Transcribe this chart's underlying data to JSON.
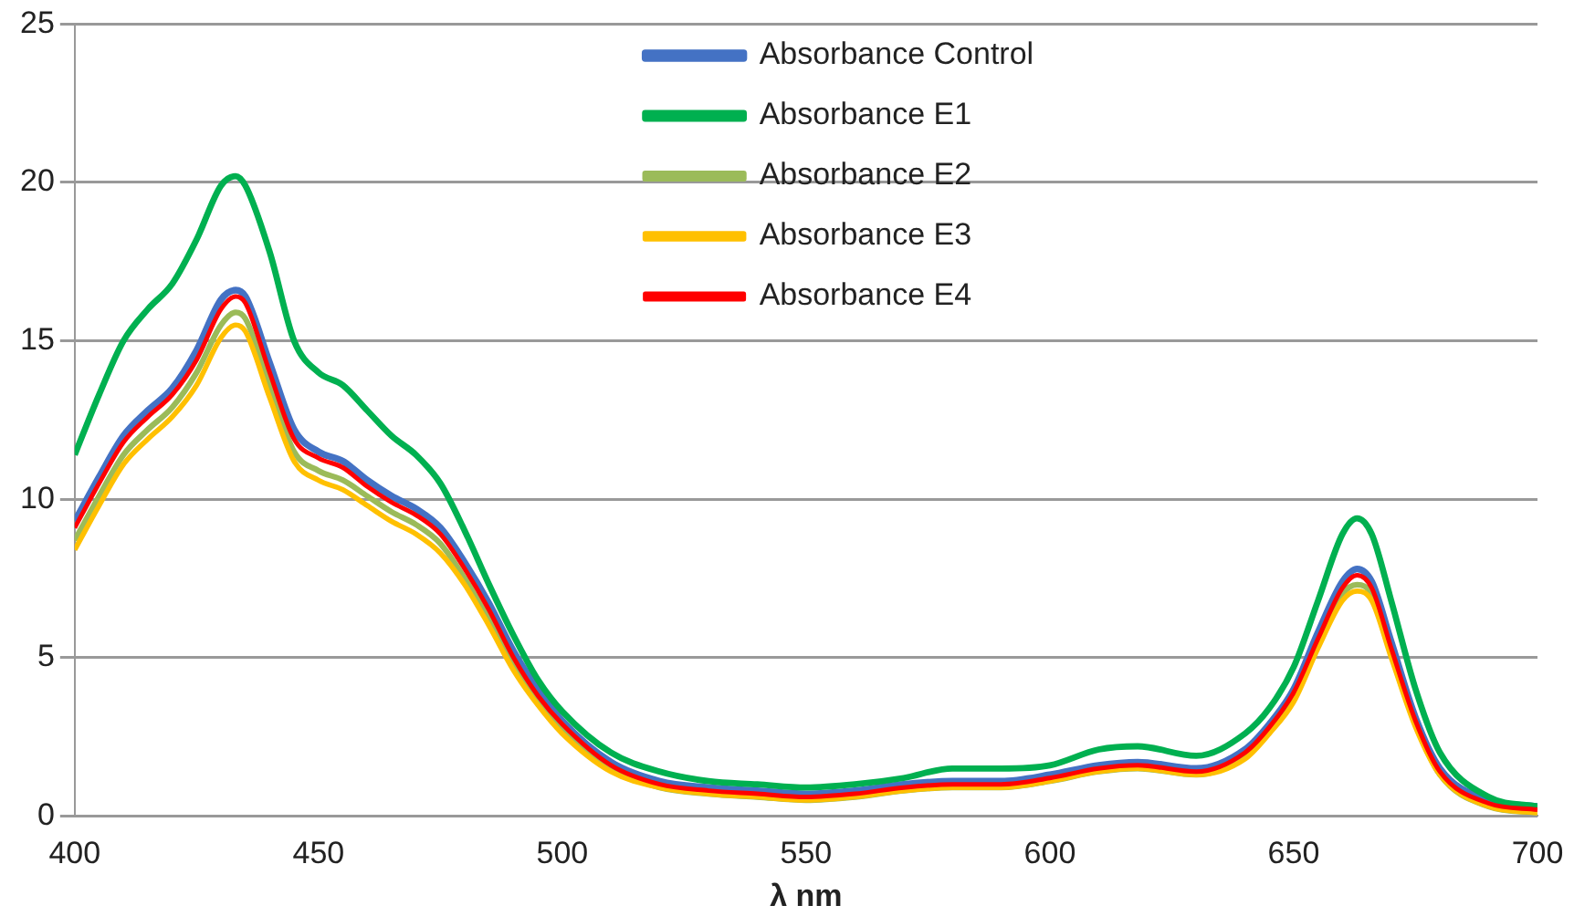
{
  "chart_data": {
    "type": "line",
    "xlabel": "λ nm",
    "xlim": [
      400,
      700
    ],
    "xticks": [
      400,
      450,
      500,
      550,
      600,
      650,
      700
    ],
    "ylim": [
      0,
      25
    ],
    "yticks": [
      0,
      5,
      10,
      15,
      20,
      25
    ],
    "grid": "y",
    "legend": "top",
    "marker": "none",
    "x": [
      400,
      405,
      410,
      415,
      420,
      425,
      430,
      433,
      435,
      440,
      445,
      450,
      455,
      460,
      465,
      470,
      475,
      480,
      485,
      490,
      495,
      500,
      510,
      520,
      530,
      540,
      550,
      560,
      570,
      580,
      590,
      600,
      610,
      618,
      630,
      640,
      645,
      650,
      655,
      660,
      663,
      666,
      670,
      675,
      680,
      690,
      700
    ],
    "series": [
      {
        "name": "Absorbance Control",
        "color": "#4472c4",
        "values": [
          9.3,
          10.7,
          12.0,
          12.8,
          13.5,
          14.7,
          16.3,
          16.6,
          16.4,
          14.3,
          12.2,
          11.5,
          11.2,
          10.6,
          10.1,
          9.7,
          9.1,
          8.0,
          6.7,
          5.2,
          4.0,
          3.0,
          1.7,
          1.1,
          0.9,
          0.8,
          0.7,
          0.8,
          1.0,
          1.1,
          1.1,
          1.3,
          1.6,
          1.7,
          1.5,
          2.1,
          2.9,
          4.0,
          5.8,
          7.4,
          7.8,
          7.4,
          5.5,
          3.1,
          1.5,
          0.5,
          0.3
        ]
      },
      {
        "name": "Absorbance E1",
        "color": "#00b050",
        "values": [
          11.4,
          13.3,
          15.0,
          16.0,
          16.8,
          18.2,
          19.9,
          20.2,
          19.9,
          17.8,
          15.0,
          14.0,
          13.6,
          12.8,
          12.0,
          11.4,
          10.5,
          9.0,
          7.3,
          5.7,
          4.3,
          3.3,
          2.0,
          1.4,
          1.1,
          1.0,
          0.9,
          1.0,
          1.2,
          1.5,
          1.5,
          1.6,
          2.1,
          2.2,
          1.9,
          2.6,
          3.4,
          4.7,
          6.8,
          8.9,
          9.4,
          8.9,
          6.8,
          4.0,
          2.0,
          0.6,
          0.3
        ]
      },
      {
        "name": "Absorbance E2",
        "color": "#9bbb59",
        "values": [
          8.7,
          10.1,
          11.4,
          12.2,
          12.9,
          14.0,
          15.5,
          15.9,
          15.7,
          13.6,
          11.5,
          10.9,
          10.6,
          10.1,
          9.6,
          9.2,
          8.6,
          7.5,
          6.2,
          4.8,
          3.6,
          2.7,
          1.5,
          0.9,
          0.7,
          0.6,
          0.5,
          0.6,
          0.8,
          0.9,
          0.9,
          1.1,
          1.4,
          1.5,
          1.3,
          1.9,
          2.7,
          3.7,
          5.4,
          7.0,
          7.3,
          7.0,
          5.1,
          2.9,
          1.3,
          0.3,
          0.1
        ]
      },
      {
        "name": "Absorbance E3",
        "color": "#ffc000",
        "values": [
          8.4,
          9.8,
          11.1,
          11.9,
          12.6,
          13.6,
          15.1,
          15.5,
          15.3,
          13.2,
          11.2,
          10.6,
          10.3,
          9.8,
          9.3,
          8.9,
          8.3,
          7.3,
          6.0,
          4.6,
          3.5,
          2.6,
          1.4,
          0.9,
          0.7,
          0.6,
          0.5,
          0.6,
          0.8,
          0.9,
          0.9,
          1.1,
          1.4,
          1.5,
          1.3,
          1.8,
          2.6,
          3.6,
          5.3,
          6.8,
          7.1,
          6.8,
          5.0,
          2.8,
          1.3,
          0.3,
          0.1
        ]
      },
      {
        "name": "Absorbance E4",
        "color": "#ff0000",
        "values": [
          9.1,
          10.5,
          11.8,
          12.6,
          13.3,
          14.4,
          16.0,
          16.4,
          16.2,
          14.0,
          11.9,
          11.3,
          11.0,
          10.4,
          9.9,
          9.5,
          8.9,
          7.8,
          6.5,
          5.0,
          3.8,
          2.9,
          1.6,
          1.0,
          0.8,
          0.7,
          0.6,
          0.7,
          0.9,
          1.0,
          1.0,
          1.2,
          1.5,
          1.6,
          1.4,
          2.0,
          2.8,
          3.9,
          5.6,
          7.2,
          7.6,
          7.2,
          5.3,
          3.0,
          1.4,
          0.4,
          0.2
        ]
      }
    ]
  }
}
